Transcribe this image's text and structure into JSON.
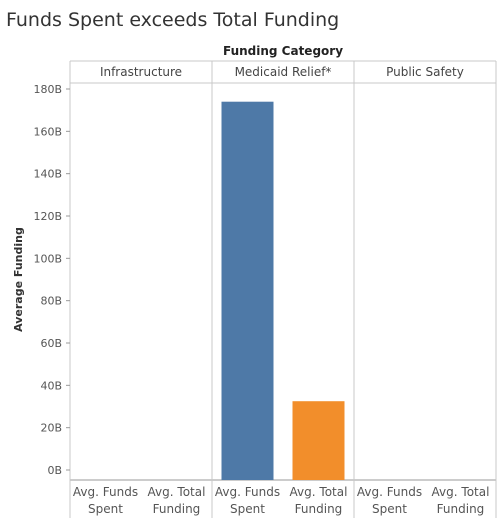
{
  "chart_data": {
    "type": "bar",
    "title": "Funds Spent exceeds Total Funding",
    "column_header": "Funding Category",
    "groups": [
      "Infrastructure",
      "Medicaid Relief*",
      "Public Safety"
    ],
    "measures": [
      "Avg. Funds Spent",
      "Avg. Total Funding"
    ],
    "measure_labels": [
      [
        "Avg. Funds",
        "Spent"
      ],
      [
        "Avg. Total",
        "Funding"
      ]
    ],
    "series": [
      {
        "name": "Avg. Funds Spent",
        "color": "#4e79a7",
        "values": [
          null,
          174,
          null
        ]
      },
      {
        "name": "Avg. Total Funding",
        "color": "#f28e2b",
        "values": [
          null,
          32.5,
          null
        ]
      }
    ],
    "ylabel": "Average Funding",
    "ylim": [
      0,
      180
    ],
    "yticks": [
      0,
      20,
      40,
      60,
      80,
      100,
      120,
      140,
      160,
      180
    ],
    "ytick_labels": [
      "0B",
      "20B",
      "40B",
      "60B",
      "80B",
      "100B",
      "120B",
      "140B",
      "160B",
      "180B"
    ],
    "grid": false
  }
}
